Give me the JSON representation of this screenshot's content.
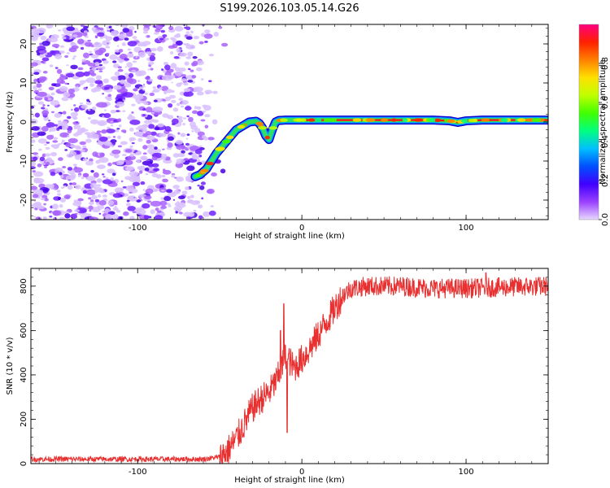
{
  "chart_data": [
    {
      "type": "heatmap",
      "title": "S199.2026.103.05.14.G26",
      "xlabel": "Height of straight line (km)",
      "ylabel": "Frequency (Hz)",
      "xlim": [
        -165,
        150
      ],
      "ylim": [
        -25,
        25
      ],
      "xticks": [
        -100,
        0,
        100
      ],
      "xtick_labels": [
        "-100",
        "0",
        "100"
      ],
      "yticks": [
        -20,
        -10,
        0,
        10,
        20
      ],
      "ytick_labels": [
        "-20",
        "-10",
        "0",
        "10",
        "20"
      ],
      "colorbar": {
        "label": "Normalized spectral amplitude",
        "range": [
          0,
          1
        ],
        "ticks": [
          0.0,
          0.2,
          0.4,
          0.6,
          0.8
        ],
        "tick_labels": [
          "0.0",
          "0.2",
          "0.4",
          "0.6",
          "0.8"
        ],
        "colors": [
          "#e8d8ff",
          "#9a40ff",
          "#4000ff",
          "#0050ff",
          "#00c0ff",
          "#00ff80",
          "#40ff00",
          "#c0ff00",
          "#ffe000",
          "#ff8000",
          "#ff2000",
          "#ff0080"
        ]
      },
      "ridge": {
        "x": [
          -65,
          -62,
          -58,
          -55,
          -52,
          -48,
          -44,
          -40,
          -36,
          -32,
          -28,
          -26,
          -24,
          -22,
          -20,
          -18,
          -16,
          -14,
          -10,
          -5,
          0,
          10,
          20,
          40,
          60,
          80,
          90,
          95,
          100,
          110,
          120,
          150
        ],
        "y": [
          -14,
          -13.5,
          -12,
          -10,
          -8,
          -6,
          -4,
          -2,
          -1,
          0,
          0.2,
          -0.3,
          -1.5,
          -3.5,
          -4.5,
          -2,
          0,
          0.4,
          0.5,
          0.5,
          0.5,
          0.5,
          0.5,
          0.5,
          0.5,
          0.5,
          0.3,
          -0.1,
          0.3,
          0.5,
          0.5,
          0.5
        ]
      },
      "noise_region": {
        "x": [
          -165,
          -55
        ],
        "description_range_hz": [
          -25,
          25
        ]
      }
    },
    {
      "type": "line",
      "title": "",
      "xlabel": "Height of straight line (km)",
      "ylabel": "SNR (10 * v/v)",
      "xlim": [
        -165,
        150
      ],
      "ylim": [
        0,
        880
      ],
      "xticks": [
        -100,
        0,
        100
      ],
      "xtick_labels": [
        "-100",
        "0",
        "100"
      ],
      "yticks": [
        0,
        200,
        400,
        600,
        800
      ],
      "ytick_labels": [
        "0",
        "200",
        "400",
        "600",
        "800"
      ],
      "color": "#e83030",
      "trend": {
        "x": [
          -165,
          -60,
          -50,
          -45,
          -40,
          -35,
          -30,
          -25,
          -20,
          -15,
          -12,
          -10,
          -8,
          -5,
          0,
          5,
          10,
          15,
          20,
          25,
          30,
          40,
          60,
          80,
          100,
          120,
          150
        ],
        "y": [
          20,
          20,
          30,
          60,
          110,
          180,
          250,
          290,
          320,
          380,
          440,
          480,
          470,
          430,
          470,
          520,
          580,
          640,
          700,
          760,
          790,
          800,
          800,
          790,
          790,
          795,
          800
        ]
      },
      "spikes": [
        {
          "x": -11,
          "y": 720
        },
        {
          "x": -9,
          "y": 140
        },
        {
          "x": -13,
          "y": 600
        },
        {
          "x": 112,
          "y": 860
        }
      ]
    }
  ]
}
